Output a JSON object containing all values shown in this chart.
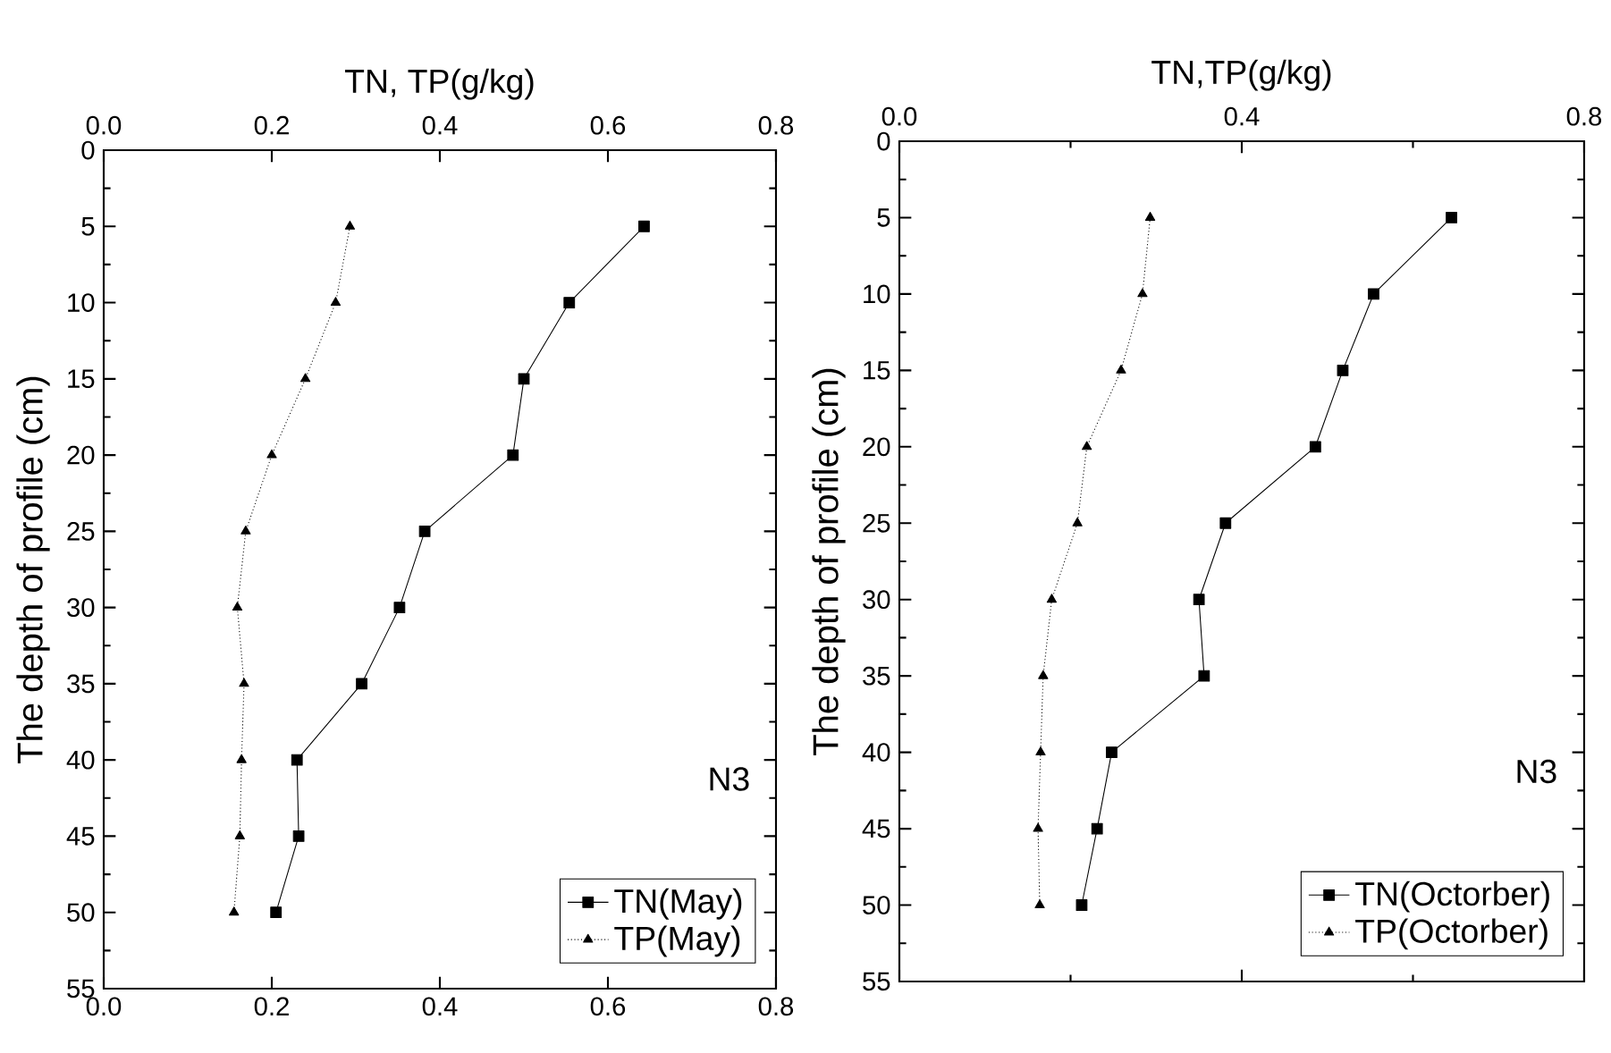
{
  "chart_data": [
    {
      "type": "line",
      "x2label": "TN, TP(g/kg)",
      "ylabel": "The depth of profile (cm)",
      "xlim": [
        0,
        0.8
      ],
      "xticks": [
        {
          "value": 0,
          "label": "0.0"
        },
        {
          "value": 0.2,
          "label": "0.2"
        },
        {
          "value": 0.4,
          "label": "0.4"
        },
        {
          "value": 0.6,
          "label": "0.6"
        },
        {
          "value": 0.8,
          "label": "0.8"
        }
      ],
      "x2lim": [
        0,
        0.8
      ],
      "x2ticks": [
        {
          "value": 0,
          "label": "0.0"
        },
        {
          "value": 0.2,
          "label": "0.2"
        },
        {
          "value": 0.4,
          "label": "0.4"
        },
        {
          "value": 0.6,
          "label": "0.6"
        },
        {
          "value": 0.8,
          "label": "0.8"
        }
      ],
      "ylim": [
        55,
        0
      ],
      "yticks": [
        0,
        5,
        10,
        15,
        20,
        25,
        30,
        35,
        40,
        45,
        50,
        55
      ],
      "legend": "bottom right",
      "annotations": [
        "N3"
      ],
      "series": [
        {
          "name": "TN(May)",
          "color": "#000000",
          "marker": "square",
          "line_style": "solid",
          "x": [
            0.643,
            0.554,
            0.5,
            0.487,
            0.382,
            0.352,
            0.307,
            0.23,
            0.232,
            0.205
          ],
          "values": [
            5,
            10,
            15,
            20,
            25,
            30,
            35,
            40,
            45,
            50
          ]
        },
        {
          "name": "TP(May)",
          "color": "#000000",
          "marker": "triangle",
          "line_style": "dotted",
          "x": [
            0.293,
            0.276,
            0.24,
            0.2,
            0.169,
            0.159,
            0.167,
            0.164,
            0.162,
            0.155
          ],
          "values": [
            5,
            10,
            15,
            20,
            25,
            30,
            35,
            40,
            45,
            50
          ]
        }
      ]
    },
    {
      "type": "line",
      "xlabel": "TN,TP(g/kg)",
      "ylabel": "The depth of profile (cm)",
      "xlim": [
        0,
        0.8
      ],
      "xticks": [
        {
          "value": 0,
          "label": "0.0"
        },
        {
          "value": 0.4,
          "label": "0.4"
        },
        {
          "value": 0.8,
          "label": "0.8"
        }
      ],
      "ylim": [
        55,
        0
      ],
      "yticks": [
        0,
        5,
        10,
        15,
        20,
        25,
        30,
        35,
        40,
        45,
        50,
        55
      ],
      "legend": "bottom right",
      "annotations": [
        "N3"
      ],
      "series": [
        {
          "name": "TN(Octorber)",
          "color": "#000000",
          "marker": "square",
          "line_style": "solid",
          "x": [
            0.645,
            0.554,
            0.518,
            0.486,
            0.381,
            0.35,
            0.356,
            0.248,
            0.231,
            0.213
          ],
          "values": [
            5,
            10,
            15,
            20,
            25,
            30,
            35,
            40,
            45,
            50
          ]
        },
        {
          "name": "TP(Octorber)",
          "color": "#000000",
          "marker": "triangle",
          "line_style": "dotted",
          "x": [
            0.293,
            0.284,
            0.259,
            0.219,
            0.208,
            0.178,
            0.168,
            0.165,
            0.162,
            0.164
          ],
          "values": [
            5,
            10,
            15,
            20,
            25,
            30,
            35,
            40,
            45,
            50
          ]
        }
      ]
    }
  ]
}
